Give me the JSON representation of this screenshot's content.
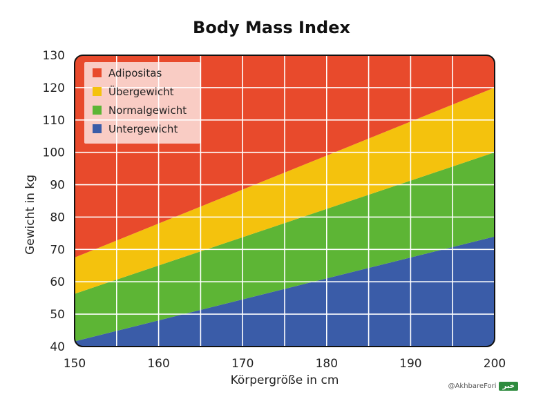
{
  "chart_data": {
    "type": "area",
    "title": "Body Mass Index",
    "xlabel": "Körpergröße in cm",
    "ylabel": "Gewicht in kg",
    "xlim": [
      150,
      200
    ],
    "ylim": [
      40,
      130
    ],
    "x_ticks": [
      150,
      160,
      170,
      180,
      190,
      200
    ],
    "y_ticks": [
      40,
      50,
      60,
      70,
      80,
      90,
      100,
      110,
      120,
      130
    ],
    "grid": true,
    "legend_position": "top-left",
    "bands": [
      {
        "name": "Untergewicht",
        "color": "#3a5ca8",
        "x": [
          150,
          200
        ],
        "lower": [
          40,
          40
        ],
        "upper": [
          41.6,
          74
        ]
      },
      {
        "name": "Normalgewicht",
        "color": "#5db535",
        "x": [
          150,
          200
        ],
        "lower": [
          41.6,
          74
        ],
        "upper": [
          56.3,
          100
        ]
      },
      {
        "name": "Übergewicht",
        "color": "#f4c20d",
        "x": [
          150,
          200
        ],
        "lower": [
          56.3,
          100
        ],
        "upper": [
          67.5,
          120
        ]
      },
      {
        "name": "Adipositas",
        "color": "#e84a2c",
        "x": [
          150,
          200
        ],
        "lower": [
          67.5,
          120
        ],
        "upper": [
          130,
          130
        ]
      }
    ],
    "legend": [
      {
        "label": "Adipositas",
        "color": "#e84a2c"
      },
      {
        "label": "Übergewicht",
        "color": "#f4c20d"
      },
      {
        "label": "Normalgewicht",
        "color": "#5db535"
      },
      {
        "label": "Untergewicht",
        "color": "#3a5ca8"
      }
    ]
  },
  "watermark": {
    "handle": "@AkhbareFori",
    "logo_icon": "news-logo-icon"
  }
}
